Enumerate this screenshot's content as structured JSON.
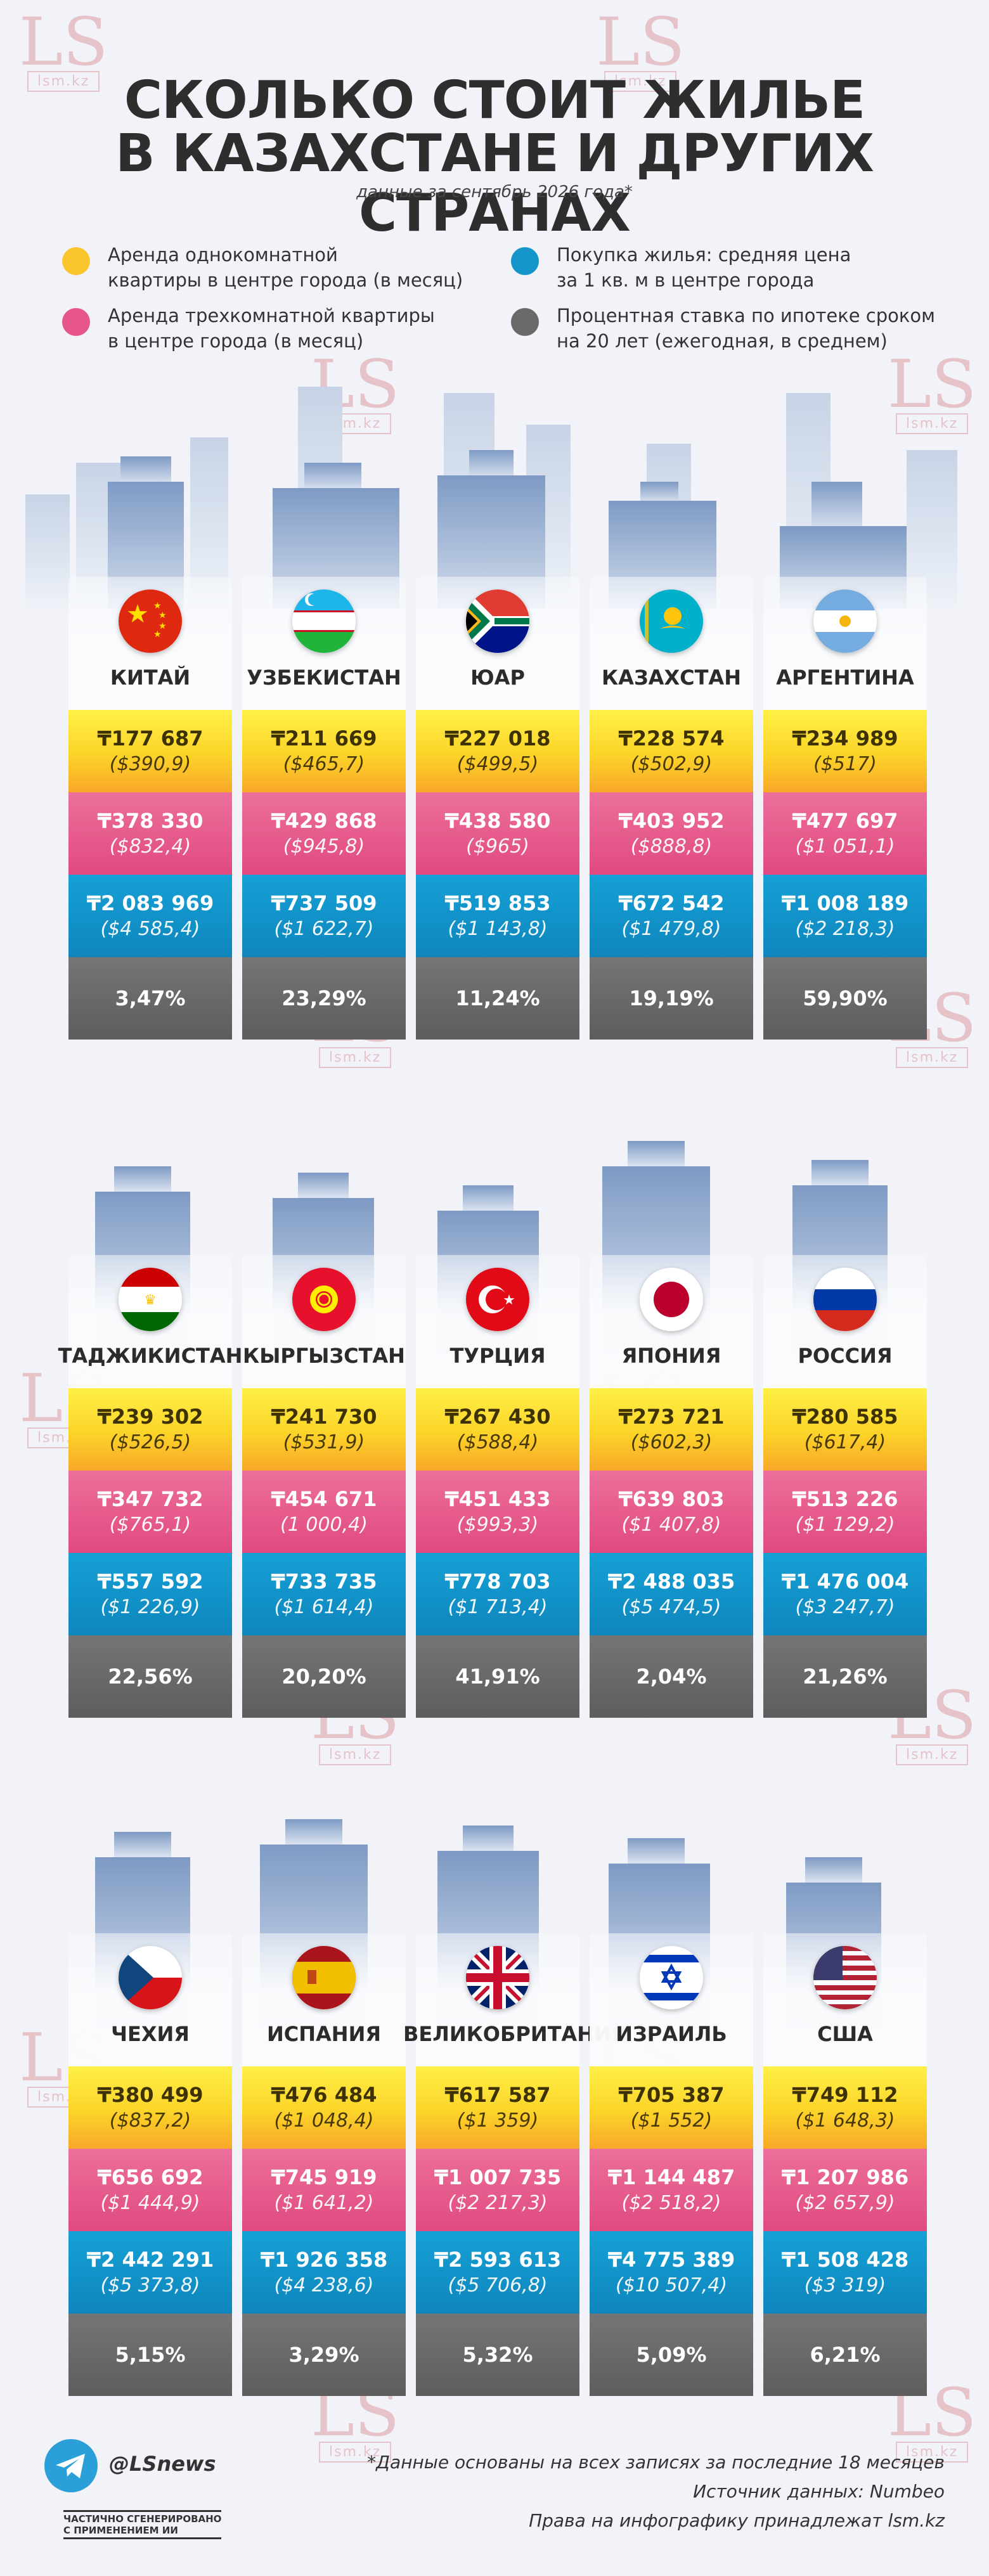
{
  "header": {
    "title_line1": "СКОЛЬКО СТОИТ ЖИЛЬЕ",
    "title_line2": "В КАЗАХСТАНЕ И ДРУГИХ СТРАНАХ",
    "subtitle": "данные за сентябрь 2026 года*"
  },
  "legend": [
    {
      "label_line1": "Аренда однокомнатной",
      "label_line2": "квартиры в центре города (в месяц)",
      "color": "#fbc52d"
    },
    {
      "label_line1": "Аренда трехкомнатной квартиры",
      "label_line2": "в центре города (в месяц)",
      "color": "#e6568a"
    },
    {
      "label_line1": "Покупка жилья: средняя цена",
      "label_line2": "за 1 кв. м в центре города",
      "color": "#1595c9"
    },
    {
      "label_line1": "Процентная ставка по ипотеке сроком",
      "label_line2": "на 20 лет (ежегодная, в среднем)",
      "color": "#6a6a6a"
    }
  ],
  "watermark": {
    "big": "LS",
    "small": "lsm.kz"
  },
  "colors": {
    "yellow": "#fcd429",
    "pink": "#e04a80",
    "blue": "#0e86bd",
    "gray": "#6a6a6a"
  },
  "sections": [
    {
      "countries": [
        {
          "name": "КИТАЙ",
          "flag": "china-flag",
          "rent1_kzt": "₸177 687",
          "rent1_usd": "($390,9)",
          "rent3_kzt": "₸378 330",
          "rent3_usd": "($832,4)",
          "buy_kzt": "₸2 083 969",
          "buy_usd": "($4 585,4)",
          "rate": "3,47%"
        },
        {
          "name": "УЗБЕКИСТАН",
          "flag": "uzbekistan-flag",
          "rent1_kzt": "₸211 669",
          "rent1_usd": "($465,7)",
          "rent3_kzt": "₸429 868",
          "rent3_usd": "($945,8)",
          "buy_kzt": "₸737 509",
          "buy_usd": "($1 622,7)",
          "rate": "23,29%"
        },
        {
          "name": "ЮАР",
          "flag": "south-africa-flag",
          "rent1_kzt": "₸227 018",
          "rent1_usd": "($499,5)",
          "rent3_kzt": "₸438 580",
          "rent3_usd": "($965)",
          "buy_kzt": "₸519 853",
          "buy_usd": "($1 143,8)",
          "rate": "11,24%"
        },
        {
          "name": "КАЗАХСТАН",
          "flag": "kazakhstan-flag",
          "rent1_kzt": "₸228 574",
          "rent1_usd": "($502,9)",
          "rent3_kzt": "₸403 952",
          "rent3_usd": "($888,8)",
          "buy_kzt": "₸672 542",
          "buy_usd": "($1 479,8)",
          "rate": "19,19%"
        },
        {
          "name": "АРГЕНТИНА",
          "flag": "argentina-flag",
          "rent1_kzt": "₸234 989",
          "rent1_usd": "($517)",
          "rent3_kzt": "₸477 697",
          "rent3_usd": "($1 051,1)",
          "buy_kzt": "₸1 008 189",
          "buy_usd": "($2 218,3)",
          "rate": "59,90%"
        }
      ]
    },
    {
      "countries": [
        {
          "name": "ТАДЖИКИСТАН",
          "flag": "tajikistan-flag",
          "rent1_kzt": "₸239 302",
          "rent1_usd": "($526,5)",
          "rent3_kzt": "₸347 732",
          "rent3_usd": "($765,1)",
          "buy_kzt": "₸557 592",
          "buy_usd": "($1 226,9)",
          "rate": "22,56%"
        },
        {
          "name": "КЫРГЫЗСТАН",
          "flag": "kyrgyzstan-flag",
          "rent1_kzt": "₸241 730",
          "rent1_usd": "($531,9)",
          "rent3_kzt": "₸454 671",
          "rent3_usd": "(1 000,4)",
          "buy_kzt": "₸733 735",
          "buy_usd": "($1 614,4)",
          "rate": "20,20%"
        },
        {
          "name": "ТУРЦИЯ",
          "flag": "turkey-flag",
          "rent1_kzt": "₸267 430",
          "rent1_usd": "($588,4)",
          "rent3_kzt": "₸451 433",
          "rent3_usd": "($993,3)",
          "buy_kzt": "₸778 703",
          "buy_usd": "($1 713,4)",
          "rate": "41,91%"
        },
        {
          "name": "ЯПОНИЯ",
          "flag": "japan-flag",
          "rent1_kzt": "₸273 721",
          "rent1_usd": "($602,3)",
          "rent3_kzt": "₸639 803",
          "rent3_usd": "($1 407,8)",
          "buy_kzt": "₸2 488 035",
          "buy_usd": "($5 474,5)",
          "rate": "2,04%"
        },
        {
          "name": "РОССИЯ",
          "flag": "russia-flag",
          "rent1_kzt": "₸280 585",
          "rent1_usd": "($617,4)",
          "rent3_kzt": "₸513 226",
          "rent3_usd": "($1 129,2)",
          "buy_kzt": "₸1 476 004",
          "buy_usd": "($3 247,7)",
          "rate": "21,26%"
        }
      ]
    },
    {
      "countries": [
        {
          "name": "ЧЕХИЯ",
          "flag": "czechia-flag",
          "rent1_kzt": "₸380 499",
          "rent1_usd": "($837,2)",
          "rent3_kzt": "₸656 692",
          "rent3_usd": "($1 444,9)",
          "buy_kzt": "₸2 442 291",
          "buy_usd": "($5 373,8)",
          "rate": "5,15%"
        },
        {
          "name": "ИСПАНИЯ",
          "flag": "spain-flag",
          "rent1_kzt": "₸476 484",
          "rent1_usd": "($1 048,4)",
          "rent3_kzt": "₸745 919",
          "rent3_usd": "($1 641,2)",
          "buy_kzt": "₸1 926 358",
          "buy_usd": "($4 238,6)",
          "rate": "3,29%"
        },
        {
          "name": "ВЕЛИКОБРИТАНИЯ",
          "flag": "uk-flag",
          "rent1_kzt": "₸617 587",
          "rent1_usd": "($1 359)",
          "rent3_kzt": "₸1 007 735",
          "rent3_usd": "($2 217,3)",
          "buy_kzt": "₸2 593 613",
          "buy_usd": "($5 706,8)",
          "rate": "5,32%"
        },
        {
          "name": "ИЗРАИЛЬ",
          "flag": "israel-flag",
          "rent1_kzt": "₸705 387",
          "rent1_usd": "($1 552)",
          "rent3_kzt": "₸1 144 487",
          "rent3_usd": "($2 518,2)",
          "buy_kzt": "₸4 775 389",
          "buy_usd": "($10 507,4)",
          "rate": "5,09%"
        },
        {
          "name": "США",
          "flag": "usa-flag",
          "rent1_kzt": "₸749 112",
          "rent1_usd": "($1 648,3)",
          "rent3_kzt": "₸1 207 986",
          "rent3_usd": "($2 657,9)",
          "buy_kzt": "₸1 508 428",
          "buy_usd": "($3 319)",
          "rate": "6,21%"
        }
      ]
    }
  ],
  "footer": {
    "handle": "@LSnews",
    "telegram_icon": "telegram-icon",
    "ai_line1": "ЧАСТИЧНО СГЕНЕРИРОВАНО",
    "ai_line2": "С ПРИМЕНЕНИЕМ ИИ",
    "note1": "*Данные основаны на всех записях за последние 18 месяцев",
    "note2": "Источник данных: Numbeo",
    "note3": "Права на инфографику принадлежат lsm.kz"
  }
}
